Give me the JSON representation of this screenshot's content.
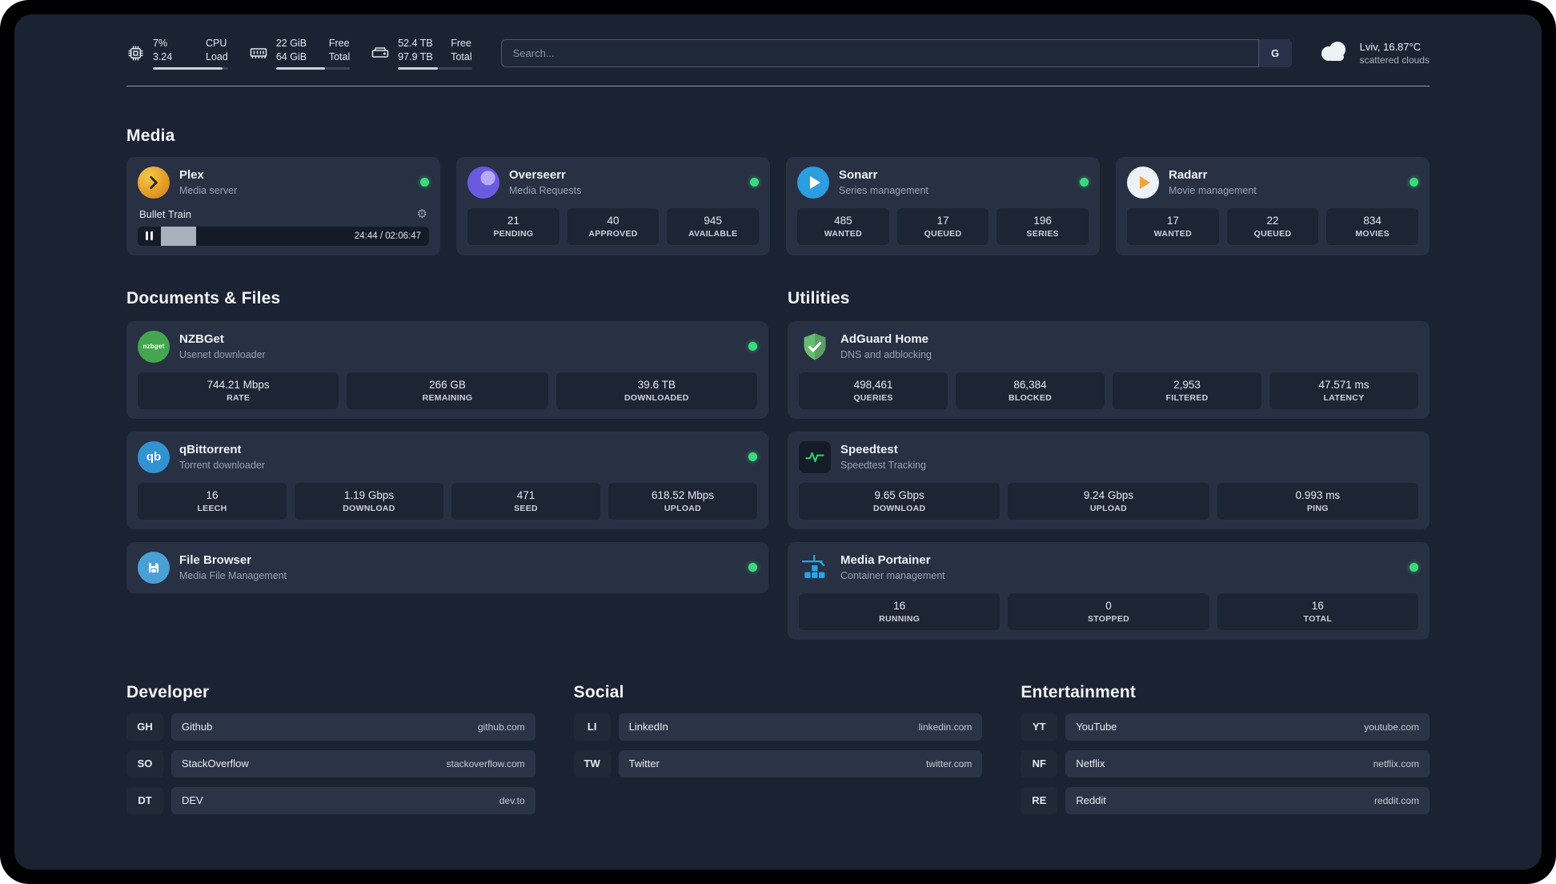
{
  "colors": {
    "background": "#1b2333",
    "card": "#283043",
    "stat_tile": "#1d2534",
    "status_green": "#3bd97d",
    "accent_amber": "#f2a33c"
  },
  "topbar": {
    "cpu": {
      "value_top": "7%",
      "value_bottom": "3.24",
      "label_top": "CPU",
      "label_bottom": "Load",
      "bar_pct": 93
    },
    "ram": {
      "value_top": "22 GiB",
      "value_bottom": "64 GiB",
      "label_top": "Free",
      "label_bottom": "Total",
      "bar_pct": 66
    },
    "disk": {
      "value_top": "52.4 TB",
      "value_bottom": "97.9 TB",
      "label_top": "Free",
      "label_bottom": "Total",
      "bar_pct": 54
    },
    "search": {
      "placeholder": "Search...",
      "provider_label": "G"
    },
    "weather": {
      "location": "Lviv, 16.87°C",
      "condition": "scattered clouds"
    }
  },
  "media": {
    "title": "Media",
    "plex": {
      "title": "Plex",
      "subtitle": "Media server",
      "player": {
        "track": "Bullet Train",
        "time": "24:44 / 02:06:47",
        "progress_pct": 19
      }
    },
    "overseerr": {
      "title": "Overseerr",
      "subtitle": "Media Requests",
      "stats": [
        {
          "value": "21",
          "label": "PENDING"
        },
        {
          "value": "40",
          "label": "APPROVED"
        },
        {
          "value": "945",
          "label": "AVAILABLE"
        }
      ]
    },
    "sonarr": {
      "title": "Sonarr",
      "subtitle": "Series management",
      "stats": [
        {
          "value": "485",
          "label": "WANTED"
        },
        {
          "value": "17",
          "label": "QUEUED"
        },
        {
          "value": "196",
          "label": "SERIES"
        }
      ]
    },
    "radarr": {
      "title": "Radarr",
      "subtitle": "Movie management",
      "stats": [
        {
          "value": "17",
          "label": "WANTED"
        },
        {
          "value": "22",
          "label": "QUEUED"
        },
        {
          "value": "834",
          "label": "MOVIES"
        }
      ]
    }
  },
  "documents": {
    "title": "Documents & Files",
    "nzbget": {
      "title": "NZBGet",
      "subtitle": "Usenet downloader",
      "icon_text": "nzbget",
      "stats": [
        {
          "value": "744.21 Mbps",
          "label": "RATE"
        },
        {
          "value": "266 GB",
          "label": "REMAINING"
        },
        {
          "value": "39.6 TB",
          "label": "DOWNLOADED"
        }
      ]
    },
    "qbittorrent": {
      "title": "qBittorrent",
      "subtitle": "Torrent downloader",
      "icon_text": "qb",
      "stats": [
        {
          "value": "16",
          "label": "LEECH"
        },
        {
          "value": "1.19 Gbps",
          "label": "DOWNLOAD"
        },
        {
          "value": "471",
          "label": "SEED"
        },
        {
          "value": "618.52 Mbps",
          "label": "UPLOAD"
        }
      ]
    },
    "filebrowser": {
      "title": "File Browser",
      "subtitle": "Media File Management"
    }
  },
  "utilities": {
    "title": "Utilities",
    "adguard": {
      "title": "AdGuard Home",
      "subtitle": "DNS and adblocking",
      "stats": [
        {
          "value": "498,461",
          "label": "QUERIES"
        },
        {
          "value": "86,384",
          "label": "BLOCKED"
        },
        {
          "value": "2,953",
          "label": "FILTERED"
        },
        {
          "value": "47.571 ms",
          "label": "LATENCY"
        }
      ]
    },
    "speedtest": {
      "title": "Speedtest",
      "subtitle": "Speedtest Tracking",
      "stats": [
        {
          "value": "9.65 Gbps",
          "label": "DOWNLOAD"
        },
        {
          "value": "9.24 Gbps",
          "label": "UPLOAD"
        },
        {
          "value": "0.993 ms",
          "label": "PING"
        }
      ]
    },
    "portainer": {
      "title": "Media Portainer",
      "subtitle": "Container management",
      "stats": [
        {
          "value": "16",
          "label": "RUNNING"
        },
        {
          "value": "0",
          "label": "STOPPED"
        },
        {
          "value": "16",
          "label": "TOTAL"
        }
      ]
    }
  },
  "bookmarks": {
    "developer": {
      "title": "Developer",
      "items": [
        {
          "abbr": "GH",
          "name": "Github",
          "url": "github.com"
        },
        {
          "abbr": "SO",
          "name": "StackOverflow",
          "url": "stackoverflow.com"
        },
        {
          "abbr": "DT",
          "name": "DEV",
          "url": "dev.to"
        }
      ]
    },
    "social": {
      "title": "Social",
      "items": [
        {
          "abbr": "LI",
          "name": "LinkedIn",
          "url": "linkedin.com"
        },
        {
          "abbr": "TW",
          "name": "Twitter",
          "url": "twitter.com"
        }
      ]
    },
    "entertainment": {
      "title": "Entertainment",
      "items": [
        {
          "abbr": "YT",
          "name": "YouTube",
          "url": "youtube.com"
        },
        {
          "abbr": "NF",
          "name": "Netflix",
          "url": "netflix.com"
        },
        {
          "abbr": "RE",
          "name": "Reddit",
          "url": "reddit.com"
        }
      ]
    }
  }
}
